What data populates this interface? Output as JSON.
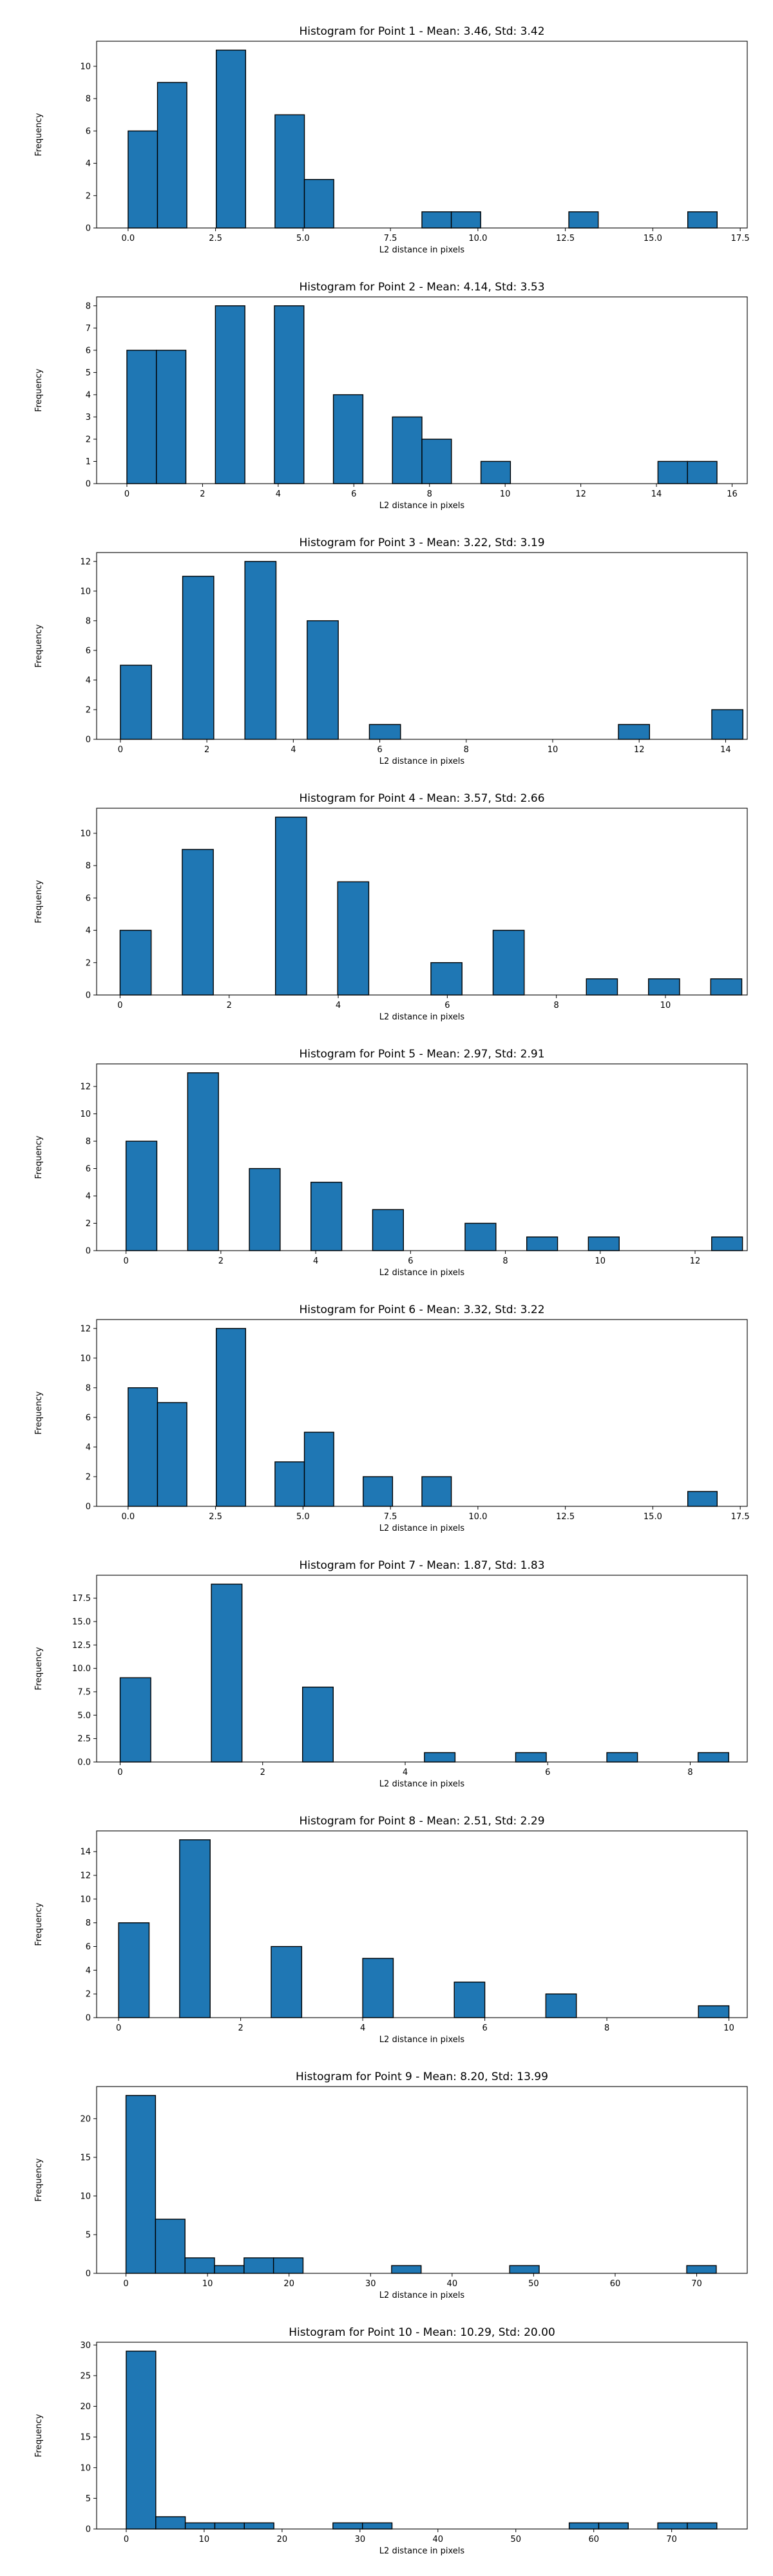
{
  "style": {
    "bar_color": "#1f77b4",
    "edge_color": "#000000"
  },
  "chart_data": [
    {
      "type": "bar",
      "title": "Histogram for Point 1 - Mean: 3.46, Std: 3.42",
      "xlabel": "L2 distance in pixels",
      "ylabel": "Frequency",
      "xlim": [
        -0.9,
        17.7
      ],
      "ylim": [
        0,
        11.55
      ],
      "xticks": [
        0,
        2.5,
        5,
        7.5,
        10,
        12.5,
        15,
        17.5
      ],
      "xtick_labels": [
        "0.0",
        "2.5",
        "5.0",
        "7.5",
        "10.0",
        "12.5",
        "15.0",
        "17.5"
      ],
      "yticks": [
        0,
        2,
        4,
        6,
        8,
        10
      ],
      "ytick_labels": [
        "0",
        "2",
        "4",
        "6",
        "8",
        "10"
      ],
      "bins": [
        [
          0,
          0.84,
          6
        ],
        [
          0.84,
          1.68,
          9
        ],
        [
          2.52,
          3.36,
          11
        ],
        [
          4.2,
          5.04,
          7
        ],
        [
          5.04,
          5.88,
          3
        ],
        [
          8.4,
          9.24,
          1
        ],
        [
          9.24,
          10.08,
          1
        ],
        [
          12.6,
          13.44,
          1
        ],
        [
          16.0,
          16.84,
          1
        ]
      ]
    },
    {
      "type": "bar",
      "title": "Histogram for Point 2 - Mean: 4.14, Std: 3.53",
      "xlabel": "L2 distance in pixels",
      "ylabel": "Frequency",
      "xlim": [
        -0.8,
        16.4
      ],
      "ylim": [
        0,
        8.4
      ],
      "xticks": [
        0,
        2,
        4,
        6,
        8,
        10,
        12,
        14,
        16
      ],
      "xtick_labels": [
        "0",
        "2",
        "4",
        "6",
        "8",
        "10",
        "12",
        "14",
        "16"
      ],
      "yticks": [
        0,
        1,
        2,
        3,
        4,
        5,
        6,
        7,
        8
      ],
      "ytick_labels": [
        "0",
        "1",
        "2",
        "3",
        "4",
        "5",
        "6",
        "7",
        "8"
      ],
      "bins": [
        [
          0,
          0.78,
          6
        ],
        [
          0.78,
          1.56,
          6
        ],
        [
          2.34,
          3.12,
          8
        ],
        [
          3.9,
          4.68,
          8
        ],
        [
          5.46,
          6.24,
          4
        ],
        [
          7.02,
          7.8,
          3
        ],
        [
          7.8,
          8.58,
          2
        ],
        [
          9.36,
          10.14,
          1
        ],
        [
          14.04,
          14.82,
          1
        ],
        [
          14.82,
          15.6,
          1
        ]
      ]
    },
    {
      "type": "bar",
      "title": "Histogram for Point 3 - Mean: 3.22, Std: 3.19",
      "xlabel": "L2 distance in pixels",
      "ylabel": "Frequency",
      "xlim": [
        -0.55,
        14.5
      ],
      "ylim": [
        0,
        12.6
      ],
      "xticks": [
        0,
        2,
        4,
        6,
        8,
        10,
        12,
        14
      ],
      "xtick_labels": [
        "0",
        "2",
        "4",
        "6",
        "8",
        "10",
        "12",
        "14"
      ],
      "yticks": [
        0,
        2,
        4,
        6,
        8,
        10,
        12
      ],
      "ytick_labels": [
        "0",
        "2",
        "4",
        "6",
        "8",
        "10",
        "12"
      ],
      "bins": [
        [
          0,
          0.72,
          5
        ],
        [
          1.44,
          2.16,
          11
        ],
        [
          2.88,
          3.6,
          12
        ],
        [
          4.32,
          5.04,
          8
        ],
        [
          5.76,
          6.48,
          1
        ],
        [
          11.52,
          12.24,
          1
        ],
        [
          12.96,
          13.68,
          0
        ],
        [
          13.68,
          14.4,
          2
        ]
      ]
    },
    {
      "type": "bar",
      "title": "Histogram for Point 4 - Mean: 3.57, Std: 2.66",
      "xlabel": "L2 distance in pixels",
      "ylabel": "Frequency",
      "xlim": [
        -0.43,
        11.5
      ],
      "ylim": [
        0,
        11.55
      ],
      "xticks": [
        0,
        2,
        4,
        6,
        8,
        10
      ],
      "xtick_labels": [
        "0",
        "2",
        "4",
        "6",
        "8",
        "10"
      ],
      "yticks": [
        0,
        2,
        4,
        6,
        8,
        10
      ],
      "ytick_labels": [
        "0",
        "2",
        "4",
        "6",
        "8",
        "10"
      ],
      "bins": [
        [
          0,
          0.57,
          4
        ],
        [
          1.14,
          1.71,
          9
        ],
        [
          2.85,
          3.42,
          11
        ],
        [
          3.99,
          4.56,
          7
        ],
        [
          5.7,
          6.27,
          2
        ],
        [
          6.84,
          7.41,
          4
        ],
        [
          8.55,
          9.12,
          1
        ],
        [
          9.69,
          10.26,
          1
        ],
        [
          10.83,
          11.4,
          1
        ]
      ]
    },
    {
      "type": "bar",
      "title": "Histogram for Point 5 - Mean: 2.97, Std: 2.91",
      "xlabel": "L2 distance in pixels",
      "ylabel": "Frequency",
      "xlim": [
        -0.62,
        13.1
      ],
      "ylim": [
        0,
        13.65
      ],
      "xticks": [
        0,
        2,
        4,
        6,
        8,
        10,
        12
      ],
      "xtick_labels": [
        "0",
        "2",
        "4",
        "6",
        "8",
        "10",
        "12"
      ],
      "yticks": [
        0,
        2,
        4,
        6,
        8,
        10,
        12
      ],
      "ytick_labels": [
        "0",
        "2",
        "4",
        "6",
        "8",
        "10",
        "12"
      ],
      "bins": [
        [
          0,
          0.65,
          8
        ],
        [
          1.3,
          1.95,
          13
        ],
        [
          2.6,
          3.25,
          6
        ],
        [
          3.9,
          4.55,
          5
        ],
        [
          5.2,
          5.85,
          3
        ],
        [
          7.15,
          7.8,
          2
        ],
        [
          8.45,
          9.1,
          1
        ],
        [
          9.75,
          10.4,
          1
        ],
        [
          12.35,
          13.0,
          1
        ]
      ]
    },
    {
      "type": "bar",
      "title": "Histogram for Point 6 - Mean: 3.32, Std: 3.22",
      "xlabel": "L2 distance in pixels",
      "ylabel": "Frequency",
      "xlim": [
        -0.9,
        17.7
      ],
      "ylim": [
        0,
        12.6
      ],
      "xticks": [
        0,
        2.5,
        5,
        7.5,
        10,
        12.5,
        15,
        17.5
      ],
      "xtick_labels": [
        "0.0",
        "2.5",
        "5.0",
        "7.5",
        "10.0",
        "12.5",
        "15.0",
        "17.5"
      ],
      "yticks": [
        0,
        2,
        4,
        6,
        8,
        10,
        12
      ],
      "ytick_labels": [
        "0",
        "2",
        "4",
        "6",
        "8",
        "10",
        "12"
      ],
      "bins": [
        [
          0,
          0.84,
          8
        ],
        [
          0.84,
          1.68,
          7
        ],
        [
          2.52,
          3.36,
          12
        ],
        [
          4.2,
          5.04,
          3
        ],
        [
          5.04,
          5.88,
          5
        ],
        [
          6.72,
          7.56,
          2
        ],
        [
          8.4,
          9.24,
          2
        ],
        [
          16.0,
          16.84,
          1
        ]
      ]
    },
    {
      "type": "bar",
      "title": "Histogram for Point 7 - Mean: 1.87, Std: 1.83",
      "xlabel": "L2 distance in pixels",
      "ylabel": "Frequency",
      "xlim": [
        -0.33,
        8.8
      ],
      "ylim": [
        0,
        19.95
      ],
      "xticks": [
        0,
        2,
        4,
        6,
        8
      ],
      "xtick_labels": [
        "0",
        "2",
        "4",
        "6",
        "8"
      ],
      "yticks": [
        0,
        2.5,
        5,
        7.5,
        10,
        12.5,
        15,
        17.5
      ],
      "ytick_labels": [
        "0.0",
        "2.5",
        "5.0",
        "7.5",
        "10.0",
        "12.5",
        "15.0",
        "17.5"
      ],
      "bins": [
        [
          0,
          0.43,
          9
        ],
        [
          1.28,
          1.71,
          19
        ],
        [
          2.56,
          2.99,
          8
        ],
        [
          4.27,
          4.7,
          1
        ],
        [
          5.55,
          5.98,
          1
        ],
        [
          6.83,
          7.26,
          1
        ],
        [
          8.11,
          8.54,
          1
        ]
      ]
    },
    {
      "type": "bar",
      "title": "Histogram for Point 8 - Mean: 2.51, Std: 2.29",
      "xlabel": "L2 distance in pixels",
      "ylabel": "Frequency",
      "xlim": [
        -0.36,
        10.3
      ],
      "ylim": [
        0,
        15.75
      ],
      "xticks": [
        0,
        2,
        4,
        6,
        8,
        10
      ],
      "xtick_labels": [
        "0",
        "2",
        "4",
        "6",
        "8",
        "10"
      ],
      "yticks": [
        0,
        2,
        4,
        6,
        8,
        10,
        12,
        14
      ],
      "ytick_labels": [
        "0",
        "2",
        "4",
        "6",
        "8",
        "10",
        "12",
        "14"
      ],
      "bins": [
        [
          0,
          0.5,
          8
        ],
        [
          1.0,
          1.5,
          15
        ],
        [
          2.5,
          3.0,
          6
        ],
        [
          4.0,
          4.5,
          5
        ],
        [
          5.5,
          6.0,
          3
        ],
        [
          7.0,
          7.5,
          2
        ],
        [
          9.5,
          10.0,
          1
        ]
      ]
    },
    {
      "type": "bar",
      "title": "Histogram for Point 9 - Mean: 8.20, Std: 13.99",
      "xlabel": "L2 distance in pixels",
      "ylabel": "Frequency",
      "xlim": [
        -3.6,
        76.2
      ],
      "ylim": [
        0,
        24.15
      ],
      "xticks": [
        0,
        10,
        20,
        30,
        40,
        50,
        60,
        70
      ],
      "xtick_labels": [
        "0",
        "10",
        "20",
        "30",
        "40",
        "50",
        "60",
        "70"
      ],
      "yticks": [
        0,
        5,
        10,
        15,
        20
      ],
      "ytick_labels": [
        "0",
        "5",
        "10",
        "15",
        "20"
      ],
      "bins": [
        [
          0,
          3.62,
          23
        ],
        [
          3.62,
          7.24,
          7
        ],
        [
          7.24,
          10.86,
          2
        ],
        [
          10.86,
          14.48,
          1
        ],
        [
          14.48,
          18.1,
          2
        ],
        [
          18.1,
          21.72,
          2
        ],
        [
          32.58,
          36.2,
          1
        ],
        [
          47.06,
          50.68,
          1
        ],
        [
          68.78,
          72.4,
          1
        ]
      ]
    },
    {
      "type": "bar",
      "title": "Histogram for Point 10 - Mean: 10.29, Std: 20.00",
      "xlabel": "L2 distance in pixels",
      "ylabel": "Frequency",
      "xlim": [
        -3.8,
        79.7
      ],
      "ylim": [
        0,
        30.45
      ],
      "xticks": [
        0,
        10,
        20,
        30,
        40,
        50,
        60,
        70
      ],
      "xtick_labels": [
        "0",
        "10",
        "20",
        "30",
        "40",
        "50",
        "60",
        "70"
      ],
      "yticks": [
        0,
        5,
        10,
        15,
        20,
        25,
        30
      ],
      "ytick_labels": [
        "0",
        "5",
        "10",
        "15",
        "20",
        "25",
        "30"
      ],
      "bins": [
        [
          0,
          3.79,
          29
        ],
        [
          3.79,
          7.58,
          2
        ],
        [
          7.58,
          11.37,
          1
        ],
        [
          11.37,
          15.16,
          1
        ],
        [
          15.16,
          18.95,
          1
        ],
        [
          26.53,
          30.32,
          1
        ],
        [
          30.32,
          34.11,
          1
        ],
        [
          56.85,
          60.64,
          1
        ],
        [
          60.64,
          64.43,
          1
        ],
        [
          68.22,
          72.01,
          1
        ],
        [
          72.01,
          75.8,
          1
        ]
      ]
    }
  ]
}
